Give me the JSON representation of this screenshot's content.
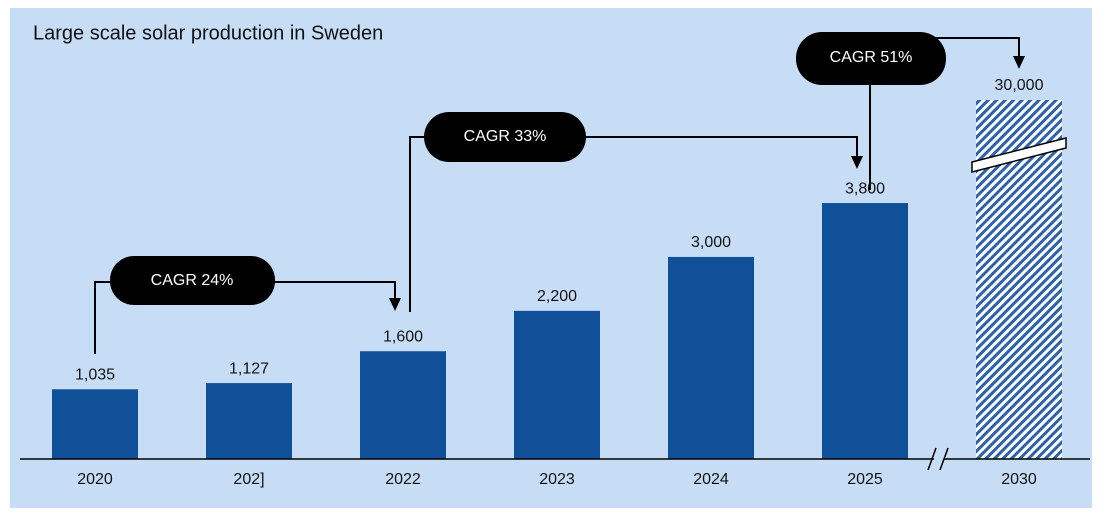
{
  "chart_data": {
    "type": "bar",
    "title": "Large scale solar production in Sweden",
    "categories": [
      "2020",
      "202]",
      "2022",
      "2023",
      "2024",
      "2025",
      "2030"
    ],
    "values": [
      1035,
      1127,
      1600,
      2200,
      3000,
      3800,
      30000
    ],
    "value_labels": [
      "1,035",
      "1,127",
      "1,600",
      "2,200",
      "3,000",
      "3,800",
      "30,000"
    ],
    "color": "#0f5098",
    "ylim": [
      0,
      5330
    ],
    "annotations": [
      "CAGR 24%",
      "CAGR 33%",
      "CAGR 51%"
    ]
  }
}
